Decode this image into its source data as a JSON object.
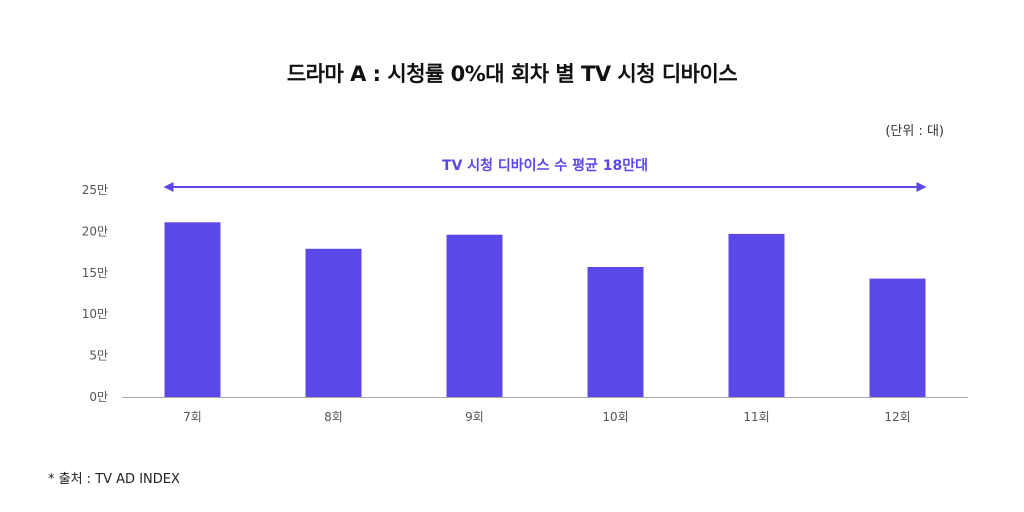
{
  "title": "드라마 A : 시청률 0%대 회차 별 TV 시청 디바이스",
  "unit_label": "(단위 : 대)",
  "source": "* 출처 : TV AD INDEX",
  "colors": {
    "bar": "#5b48e8",
    "annotation": "#5b48e8",
    "axis": "#aaaaaa",
    "text": "#555555"
  },
  "chart_data": {
    "type": "bar",
    "categories": [
      "7회",
      "8회",
      "9회",
      "10회",
      "11회",
      "12회"
    ],
    "values": [
      211000,
      179000,
      196000,
      157000,
      197000,
      143000
    ],
    "y_ticks": [
      0,
      50000,
      100000,
      150000,
      200000,
      250000
    ],
    "y_tick_labels": [
      "0만",
      "5만",
      "10만",
      "15만",
      "20만",
      "25만"
    ],
    "ylim": [
      0,
      250000
    ],
    "grid": false,
    "legend": "none",
    "annotation": "TV 시청 디바이스 수 평균 18만대"
  }
}
